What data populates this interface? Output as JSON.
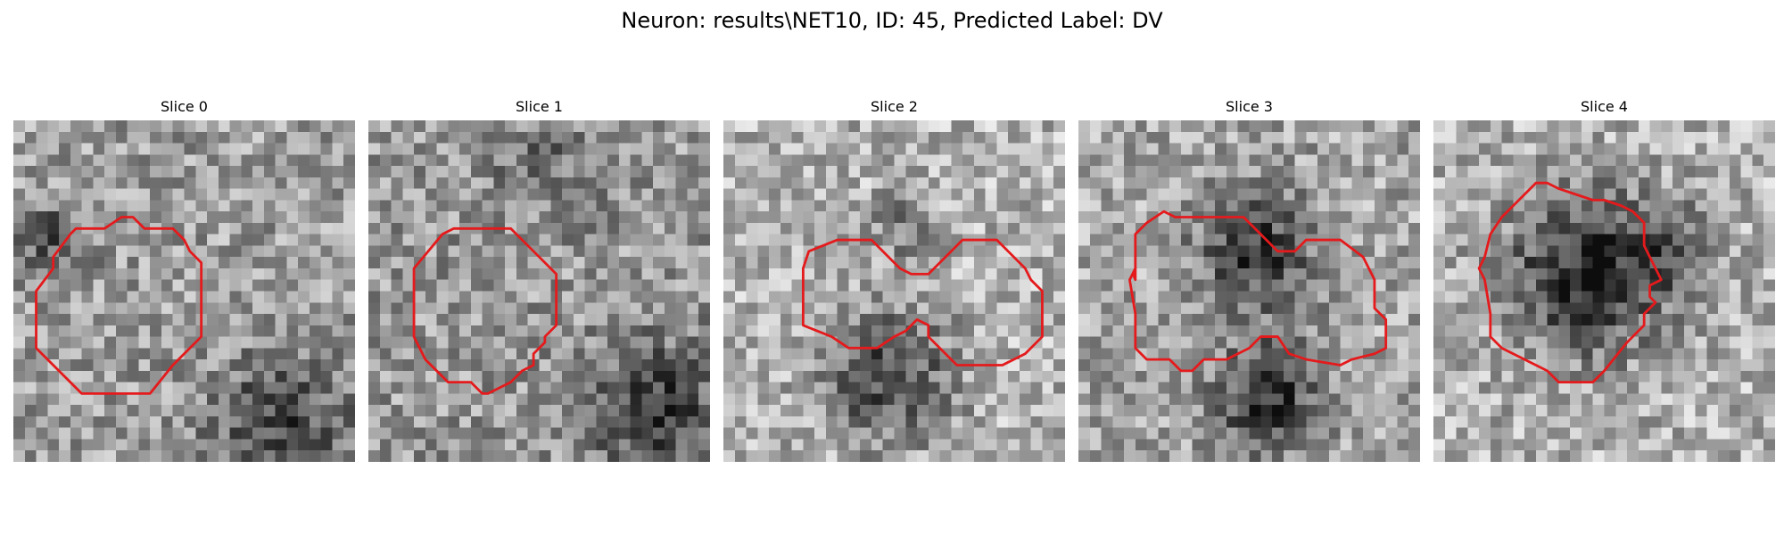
{
  "figure": {
    "title": "Neuron: results\\NET10, ID: 45, Predicted Label: DV",
    "contour_color": "#e41a1c"
  },
  "slices": [
    {
      "title": "Slice 0"
    },
    {
      "title": "Slice 1"
    },
    {
      "title": "Slice 2"
    },
    {
      "title": "Slice 3"
    },
    {
      "title": "Slice 4"
    }
  ]
}
